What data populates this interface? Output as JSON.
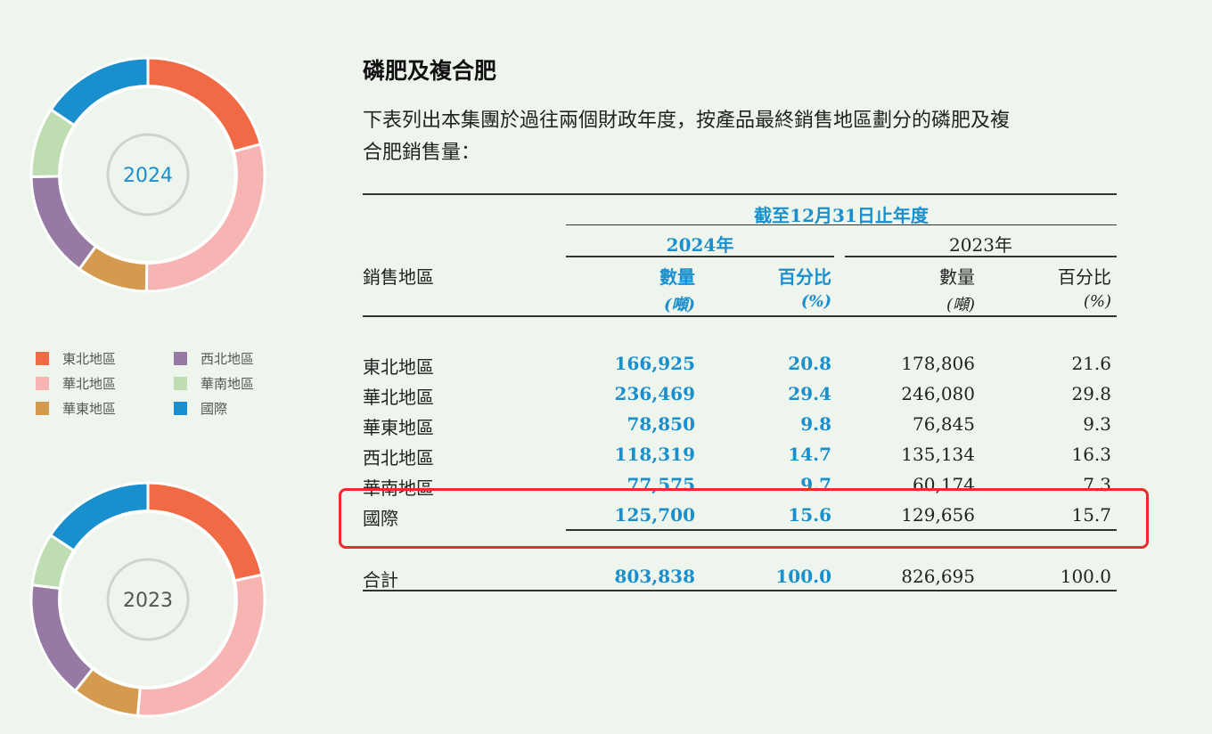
{
  "donuts": [
    {
      "year": "2024",
      "values": [
        20.8,
        29.4,
        9.8,
        14.7,
        9.7,
        15.6
      ]
    },
    {
      "year": "2023",
      "values": [
        21.6,
        29.8,
        9.3,
        16.3,
        7.3,
        15.7
      ]
    }
  ],
  "colors": {
    "northeast": "#ef6a45",
    "north": "#f6b5b3",
    "east": "#d49a4e",
    "northwest": "#977aa3",
    "south": "#bfddb2",
    "international": "#1a8fcd"
  },
  "legend": [
    {
      "label": "東北地區",
      "color": "#ef6a45"
    },
    {
      "label": "西北地區",
      "color": "#977aa3"
    },
    {
      "label": "華北地區",
      "color": "#f6b5b3"
    },
    {
      "label": "華南地區",
      "color": "#bfddb2"
    },
    {
      "label": "華東地區",
      "color": "#d49a4e"
    },
    {
      "label": "國際",
      "color": "#1a8fcd"
    }
  ],
  "section_title": "磷肥及複合肥",
  "intro_line1": "下表列出本集團於過往兩個財政年度，按產品最終銷售地區劃分的磷肥及複",
  "intro_line2": "合肥銷售量：",
  "table": {
    "period_header": "截至12月31日止年度",
    "year_2024": "2024年",
    "year_2023": "2023年",
    "region_header": "銷售地區",
    "qty_label": "數量",
    "pct_label": "百分比",
    "qty_unit": "(噸)",
    "pct_unit": "(%)",
    "rows": [
      {
        "region": "東北地區",
        "q2024": "166,925",
        "p2024": "20.8",
        "q2023": "178,806",
        "p2023": "21.6"
      },
      {
        "region": "華北地區",
        "q2024": "236,469",
        "p2024": "29.4",
        "q2023": "246,080",
        "p2023": "29.8"
      },
      {
        "region": "華東地區",
        "q2024": "78,850",
        "p2024": "9.8",
        "q2023": "76,845",
        "p2023": "9.3"
      },
      {
        "region": "西北地區",
        "q2024": "118,319",
        "p2024": "14.7",
        "q2023": "135,134",
        "p2023": "16.3"
      },
      {
        "region": "華南地區",
        "q2024": "77,575",
        "p2024": "9.7",
        "q2023": "60,174",
        "p2023": "7.3"
      },
      {
        "region": "國際",
        "q2024": "125,700",
        "p2024": "15.6",
        "q2023": "129,656",
        "p2023": "15.7"
      }
    ],
    "total": {
      "region": "合計",
      "q2024": "803,838",
      "p2024": "100.0",
      "q2023": "826,695",
      "p2023": "100.0"
    }
  }
}
